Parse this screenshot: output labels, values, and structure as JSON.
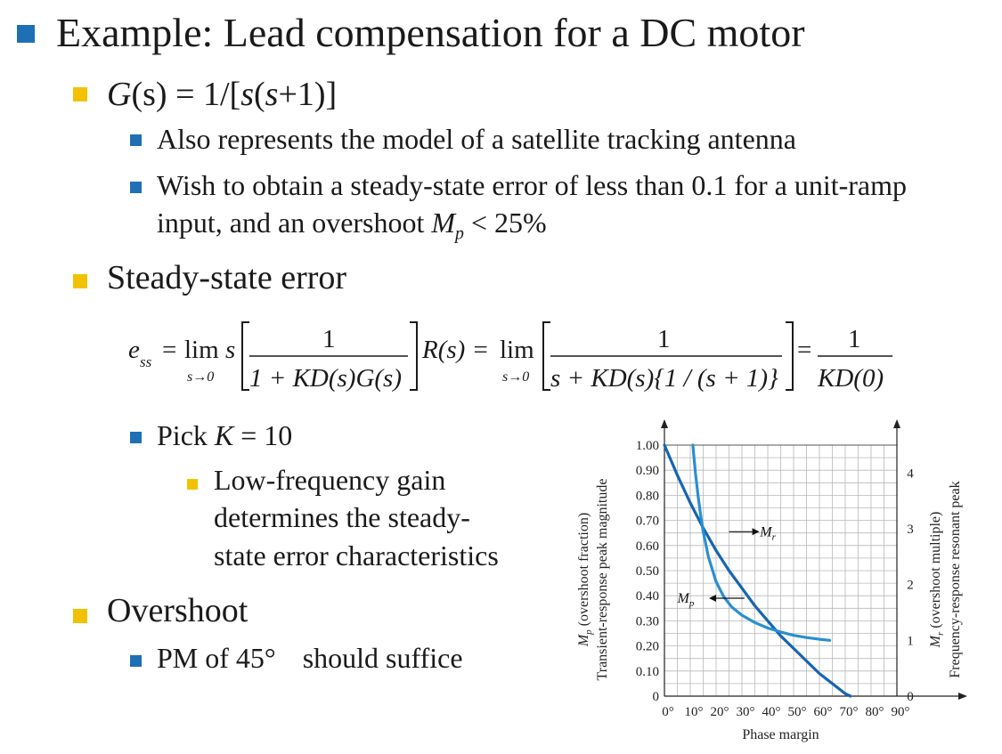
{
  "slide": {
    "title": "Example:  Lead compensation for a DC motor",
    "plant": {
      "lhs": "G",
      "arg": "(s)",
      "rhs": " = 1/[",
      "inner": "s",
      "inner2": "(",
      "inner3": "s",
      "inner4": "+1)]"
    },
    "bullet_also": "Also represents the model of a satellite tracking antenna",
    "bullet_wish_line1": "Wish to obtain a steady-state error of less than 0.1 for a unit-ramp",
    "bullet_wish_line2_a": "input, and an overshoot ",
    "bullet_wish_line2_M": "M",
    "bullet_wish_line2_sub": "p",
    "bullet_wish_line2_b": " < 25%",
    "heading_ss": "Steady-state error",
    "pick_a": "Pick ",
    "pick_K": "K",
    "pick_b": " = 10",
    "lowfreq_line1": "Low-frequency gain",
    "lowfreq_line2": "determines the steady-",
    "lowfreq_line3": "state error characteristics",
    "heading_overshoot": "Overshoot",
    "pm_a": "PM of 45",
    "pm_deg": "°",
    "pm_b": "should suffice"
  },
  "equation": {
    "e": "e",
    "ss": "ss",
    "eq1": "=",
    "lim": "lim",
    "limsub": "s→0",
    "s": "s",
    "num1": "1",
    "den1": "1 + KD(s)G(s)",
    "R": "R(s) =",
    "lim2": "lim",
    "limsub2": "s→0",
    "num2": "1",
    "den2": "s + KD(s){1 / (s + 1)}",
    "eq3": "=",
    "num3": "1",
    "den3": "KD(0)"
  },
  "chart_data": {
    "type": "line",
    "xlabel": "Phase margin",
    "ylabel_left_line1": "M",
    "ylabel_left_line1_sub": "p",
    "ylabel_left_line1_rest": " (overshoot fraction)",
    "ylabel_left_line2": "Transient-response peak magnitude",
    "ylabel_right_line1": "M",
    "ylabel_right_line1_sub": "r",
    "ylabel_right_line1_rest": " (overshoot multiple)",
    "ylabel_right_line2": "Frequency-response resonant peak",
    "x_ticks": [
      "0°",
      "10°",
      "20°",
      "30°",
      "40°",
      "50°",
      "60°",
      "70°",
      "80°",
      "90°"
    ],
    "y_left_ticks": [
      "0",
      "0.10",
      "0.20",
      "0.30",
      "0.40",
      "0.50",
      "0.60",
      "0.70",
      "0.80",
      "0.90",
      "1.00"
    ],
    "y_right_ticks": [
      "0",
      "1",
      "2",
      "3",
      "4"
    ],
    "xlim": [
      0,
      90
    ],
    "ylim_left": [
      0,
      1.0
    ],
    "ylim_right": [
      0,
      4.5
    ],
    "grid": true,
    "series": [
      {
        "name": "Mp",
        "label_main": "M",
        "label_sub": "p",
        "axis": "left",
        "color": "#1565b0",
        "x": [
          0,
          5,
          10,
          15,
          20,
          25,
          30,
          35,
          40,
          45,
          50,
          55,
          60,
          65,
          70,
          72
        ],
        "y": [
          1.0,
          0.88,
          0.77,
          0.67,
          0.58,
          0.5,
          0.43,
          0.36,
          0.3,
          0.24,
          0.19,
          0.14,
          0.09,
          0.05,
          0.01,
          0.0
        ]
      },
      {
        "name": "Mr",
        "label_main": "M",
        "label_sub": "r",
        "axis": "right",
        "color": "#2a8fd0",
        "x": [
          11,
          12,
          13,
          14,
          15,
          17,
          20,
          23,
          26,
          30,
          35,
          40,
          45,
          50,
          55,
          60,
          64
        ],
        "y": [
          4.5,
          4.0,
          3.6,
          3.25,
          2.95,
          2.5,
          2.05,
          1.78,
          1.6,
          1.45,
          1.32,
          1.22,
          1.15,
          1.09,
          1.05,
          1.02,
          1.0
        ]
      }
    ]
  }
}
